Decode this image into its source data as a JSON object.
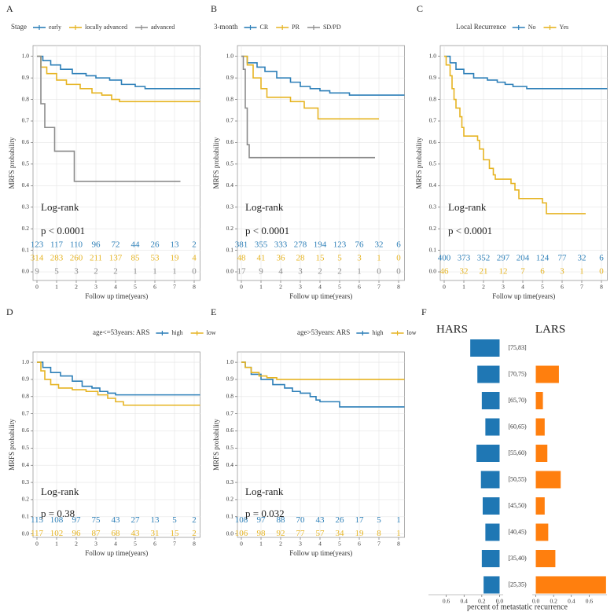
{
  "chart_data": [
    {
      "type": "km",
      "panel_label": "A",
      "legend_title": "Stage",
      "ylabel": "MRFS probability",
      "xlabel": "Follow up time(years)",
      "annotations": [
        "Log-rank",
        "p < 0.0001"
      ],
      "xlim": [
        -0.2,
        8.3
      ],
      "xticks": [
        0,
        1,
        2,
        3,
        4,
        5,
        6,
        7,
        8
      ],
      "ylim": [
        -0.04,
        1.05
      ],
      "yticks": [
        {
          "value": 0,
          "label": "0.0"
        },
        0.1,
        0.2,
        0.3,
        0.4,
        0.5,
        0.6,
        0.7,
        0.8,
        0.9,
        {
          "value": 1,
          "label": "1.0"
        }
      ],
      "grid": true,
      "series": [
        {
          "name": "early",
          "color": "#2c7fb8",
          "x": [
            0,
            0.3,
            0.7,
            1.2,
            1.8,
            2.5,
            3,
            3.7,
            4.3,
            5,
            5.5,
            8.3
          ],
          "values": [
            1,
            0.98,
            0.96,
            0.94,
            0.92,
            0.91,
            0.9,
            0.89,
            0.87,
            0.86,
            0.85,
            0.85
          ],
          "at_risk": [
            123,
            117,
            110,
            96,
            72,
            44,
            26,
            13,
            2
          ]
        },
        {
          "name": "locally advanced",
          "color": "#e6b422",
          "x": [
            0,
            0.2,
            0.5,
            1,
            1.5,
            2.2,
            2.8,
            3.3,
            3.8,
            4.2,
            8.3
          ],
          "values": [
            1,
            0.95,
            0.92,
            0.89,
            0.87,
            0.85,
            0.83,
            0.82,
            0.8,
            0.79,
            0.79
          ],
          "at_risk": [
            314,
            283,
            260,
            211,
            137,
            85,
            53,
            19,
            4
          ]
        },
        {
          "name": "advanced",
          "color": "#8c8c8c",
          "x": [
            0,
            0.2,
            0.4,
            0.9,
            1.9,
            7.3
          ],
          "values": [
            1,
            0.78,
            0.67,
            0.56,
            0.42,
            0.42
          ],
          "at_risk": [
            9,
            5,
            3,
            2,
            2,
            1,
            1,
            1,
            0
          ]
        }
      ]
    },
    {
      "type": "km",
      "panel_label": "B",
      "legend_title": "3-month",
      "ylabel": "MRFS probability",
      "xlabel": "Follow up time(years)",
      "annotations": [
        "Log-rank",
        "p < 0.0001"
      ],
      "xlim": [
        -0.2,
        8.3
      ],
      "xticks": [
        0,
        1,
        2,
        3,
        4,
        5,
        6,
        7,
        8
      ],
      "ylim": [
        -0.04,
        1.05
      ],
      "yticks": [
        {
          "value": 0,
          "label": "0.0"
        },
        0.1,
        0.2,
        0.3,
        0.4,
        0.5,
        0.6,
        0.7,
        0.8,
        0.9,
        {
          "value": 1,
          "label": "1.0"
        }
      ],
      "grid": true,
      "series": [
        {
          "name": "CR",
          "color": "#2c7fb8",
          "x": [
            0,
            0.3,
            0.8,
            1.2,
            1.8,
            2.5,
            3,
            3.5,
            4,
            4.5,
            5.5,
            8.3
          ],
          "values": [
            1,
            0.97,
            0.95,
            0.93,
            0.9,
            0.88,
            0.86,
            0.85,
            0.84,
            0.83,
            0.82,
            0.82
          ],
          "at_risk": [
            381,
            355,
            333,
            278,
            194,
            123,
            76,
            32,
            6
          ]
        },
        {
          "name": "PR",
          "color": "#e6b422",
          "x": [
            0,
            0.3,
            0.6,
            1,
            1.3,
            2.5,
            3.2,
            3.9,
            7
          ],
          "values": [
            1,
            0.96,
            0.9,
            0.85,
            0.81,
            0.79,
            0.76,
            0.71,
            0.71
          ],
          "at_risk": [
            48,
            41,
            36,
            28,
            15,
            5,
            3,
            1,
            0
          ]
        },
        {
          "name": "SD/PD",
          "color": "#8c8c8c",
          "x": [
            0,
            0.1,
            0.2,
            0.3,
            0.4,
            6.8
          ],
          "values": [
            1,
            0.94,
            0.76,
            0.59,
            0.53,
            0.53
          ],
          "at_risk": [
            17,
            9,
            4,
            3,
            2,
            2,
            1,
            0,
            0
          ]
        }
      ]
    },
    {
      "type": "km",
      "panel_label": "C",
      "legend_title": "Local Recurrence",
      "ylabel": "MRFS probability",
      "xlabel": "Follow up time(years)",
      "annotations": [
        "Log-rank",
        "p < 0.0001"
      ],
      "xlim": [
        -0.2,
        8.3
      ],
      "xticks": [
        0,
        1,
        2,
        3,
        4,
        5,
        6,
        7,
        8
      ],
      "ylim": [
        -0.04,
        1.05
      ],
      "yticks": [
        {
          "value": 0,
          "label": "0.0"
        },
        0.1,
        0.2,
        0.3,
        0.4,
        0.5,
        0.6,
        0.7,
        0.8,
        0.9,
        {
          "value": 1,
          "label": "1.0"
        }
      ],
      "grid": true,
      "series": [
        {
          "name": "No",
          "color": "#2c7fb8",
          "x": [
            0,
            0.3,
            0.6,
            1,
            1.5,
            2.2,
            2.7,
            3.1,
            3.5,
            4.2,
            8.3
          ],
          "values": [
            1,
            0.97,
            0.94,
            0.92,
            0.9,
            0.89,
            0.88,
            0.87,
            0.86,
            0.85,
            0.85
          ],
          "at_risk": [
            400,
            373,
            352,
            297,
            204,
            124,
            77,
            32,
            6
          ]
        },
        {
          "name": "Yes",
          "color": "#e6b422",
          "x": [
            0,
            0.1,
            0.3,
            0.4,
            0.5,
            0.6,
            0.8,
            0.9,
            1,
            1.7,
            1.8,
            2,
            2.3,
            2.5,
            2.6,
            3.4,
            3.6,
            3.8,
            5,
            5.2,
            7.2
          ],
          "values": [
            1,
            0.96,
            0.91,
            0.85,
            0.8,
            0.76,
            0.72,
            0.67,
            0.63,
            0.61,
            0.57,
            0.52,
            0.48,
            0.45,
            0.43,
            0.41,
            0.38,
            0.34,
            0.32,
            0.27,
            0.27
          ],
          "at_risk": [
            46,
            32,
            21,
            12,
            7,
            6,
            3,
            1,
            0
          ]
        }
      ]
    },
    {
      "type": "km",
      "panel_label": "D",
      "legend_title": "age<=53years: ARS",
      "ylabel": "MRFS probability",
      "xlabel": "Follow up time(years)",
      "annotations": [
        "Log-rank",
        "p = 0.38"
      ],
      "xlim": [
        -0.2,
        8.3
      ],
      "xticks": [
        0,
        1,
        2,
        3,
        4,
        5,
        6,
        7,
        8
      ],
      "ylim": [
        -0.02,
        1.06
      ],
      "yticks": [
        {
          "value": 0,
          "label": "0.0"
        },
        0.1,
        0.2,
        0.3,
        0.4,
        0.5,
        0.6,
        0.7,
        0.8,
        0.9,
        {
          "value": 1,
          "label": "1.0"
        }
      ],
      "grid": true,
      "series": [
        {
          "name": "high",
          "color": "#2c7fb8",
          "x": [
            0,
            0.3,
            0.7,
            1.2,
            1.8,
            2.3,
            2.8,
            3.2,
            3.6,
            4,
            8.3
          ],
          "values": [
            1,
            0.97,
            0.94,
            0.92,
            0.89,
            0.86,
            0.85,
            0.83,
            0.82,
            0.81,
            0.81
          ],
          "at_risk": [
            115,
            108,
            97,
            75,
            43,
            27,
            13,
            5,
            2
          ]
        },
        {
          "name": "low",
          "color": "#e6b422",
          "x": [
            0,
            0.2,
            0.4,
            0.7,
            1.1,
            1.8,
            2.5,
            3.1,
            3.6,
            4,
            4.4,
            8.3
          ],
          "values": [
            1,
            0.95,
            0.9,
            0.87,
            0.85,
            0.84,
            0.83,
            0.81,
            0.79,
            0.77,
            0.75,
            0.75
          ],
          "at_risk": [
            117,
            102,
            96,
            87,
            68,
            43,
            31,
            15,
            2
          ]
        }
      ]
    },
    {
      "type": "km",
      "panel_label": "E",
      "legend_title": "age>53years: ARS",
      "ylabel": "MRFS probability",
      "xlabel": "Follow up time(years)",
      "annotations": [
        "Log-rank",
        "p = 0.032"
      ],
      "xlim": [
        -0.2,
        8.3
      ],
      "xticks": [
        0,
        1,
        2,
        3,
        4,
        5,
        6,
        7,
        8
      ],
      "ylim": [
        -0.02,
        1.06
      ],
      "yticks": [
        {
          "value": 0,
          "label": "0.0"
        },
        0.1,
        0.2,
        0.3,
        0.4,
        0.5,
        0.6,
        0.7,
        0.8,
        0.9,
        {
          "value": 1,
          "label": "1.0"
        }
      ],
      "grid": true,
      "series": [
        {
          "name": "high",
          "color": "#2c7fb8",
          "x": [
            0,
            0.2,
            0.5,
            1,
            1.6,
            2.2,
            2.6,
            3,
            3.5,
            3.8,
            4,
            5,
            8.3
          ],
          "values": [
            1,
            0.97,
            0.93,
            0.9,
            0.87,
            0.85,
            0.83,
            0.82,
            0.8,
            0.78,
            0.77,
            0.74,
            0.74
          ],
          "at_risk": [
            108,
            97,
            88,
            70,
            43,
            26,
            17,
            5,
            1
          ]
        },
        {
          "name": "low",
          "color": "#e6b422",
          "x": [
            0,
            0.2,
            0.5,
            0.9,
            1.3,
            1.8,
            8.3
          ],
          "values": [
            1,
            0.97,
            0.94,
            0.92,
            0.91,
            0.9,
            0.9
          ],
          "at_risk": [
            106,
            98,
            92,
            77,
            57,
            34,
            19,
            8,
            1
          ]
        }
      ]
    },
    {
      "type": "butterfly",
      "panel_label": "F",
      "xlabel": "percent of metastatic recurrence",
      "categories": [
        "[75,83]",
        "[70,75)",
        "[65,70)",
        "[60,65)",
        "[55,60)",
        "[50,55)",
        "[45,50)",
        "[40,45)",
        "[35,40)",
        "[25,35)"
      ],
      "series": [
        {
          "name": "HARS",
          "color": "#1f77b4",
          "xlim": [
            0.8,
            -0.04
          ],
          "xticks": [
            0.6,
            0.4,
            0.2,
            {
              "value": 0,
              "label": "0.0"
            }
          ],
          "values": [
            0.33,
            0.25,
            0.2,
            0.16,
            0.26,
            0.21,
            0.19,
            0.16,
            0.2,
            0.18
          ]
        },
        {
          "name": "LARS",
          "color": "#ff7f0e",
          "xlim": [
            -0.04,
            0.8
          ],
          "xticks": [
            {
              "value": 0,
              "label": "0.0"
            },
            0.2,
            0.4,
            0.6
          ],
          "values": [
            0,
            0.26,
            0.08,
            0.1,
            0.13,
            0.28,
            0.1,
            0.14,
            0.22,
            0.79
          ]
        }
      ]
    }
  ]
}
